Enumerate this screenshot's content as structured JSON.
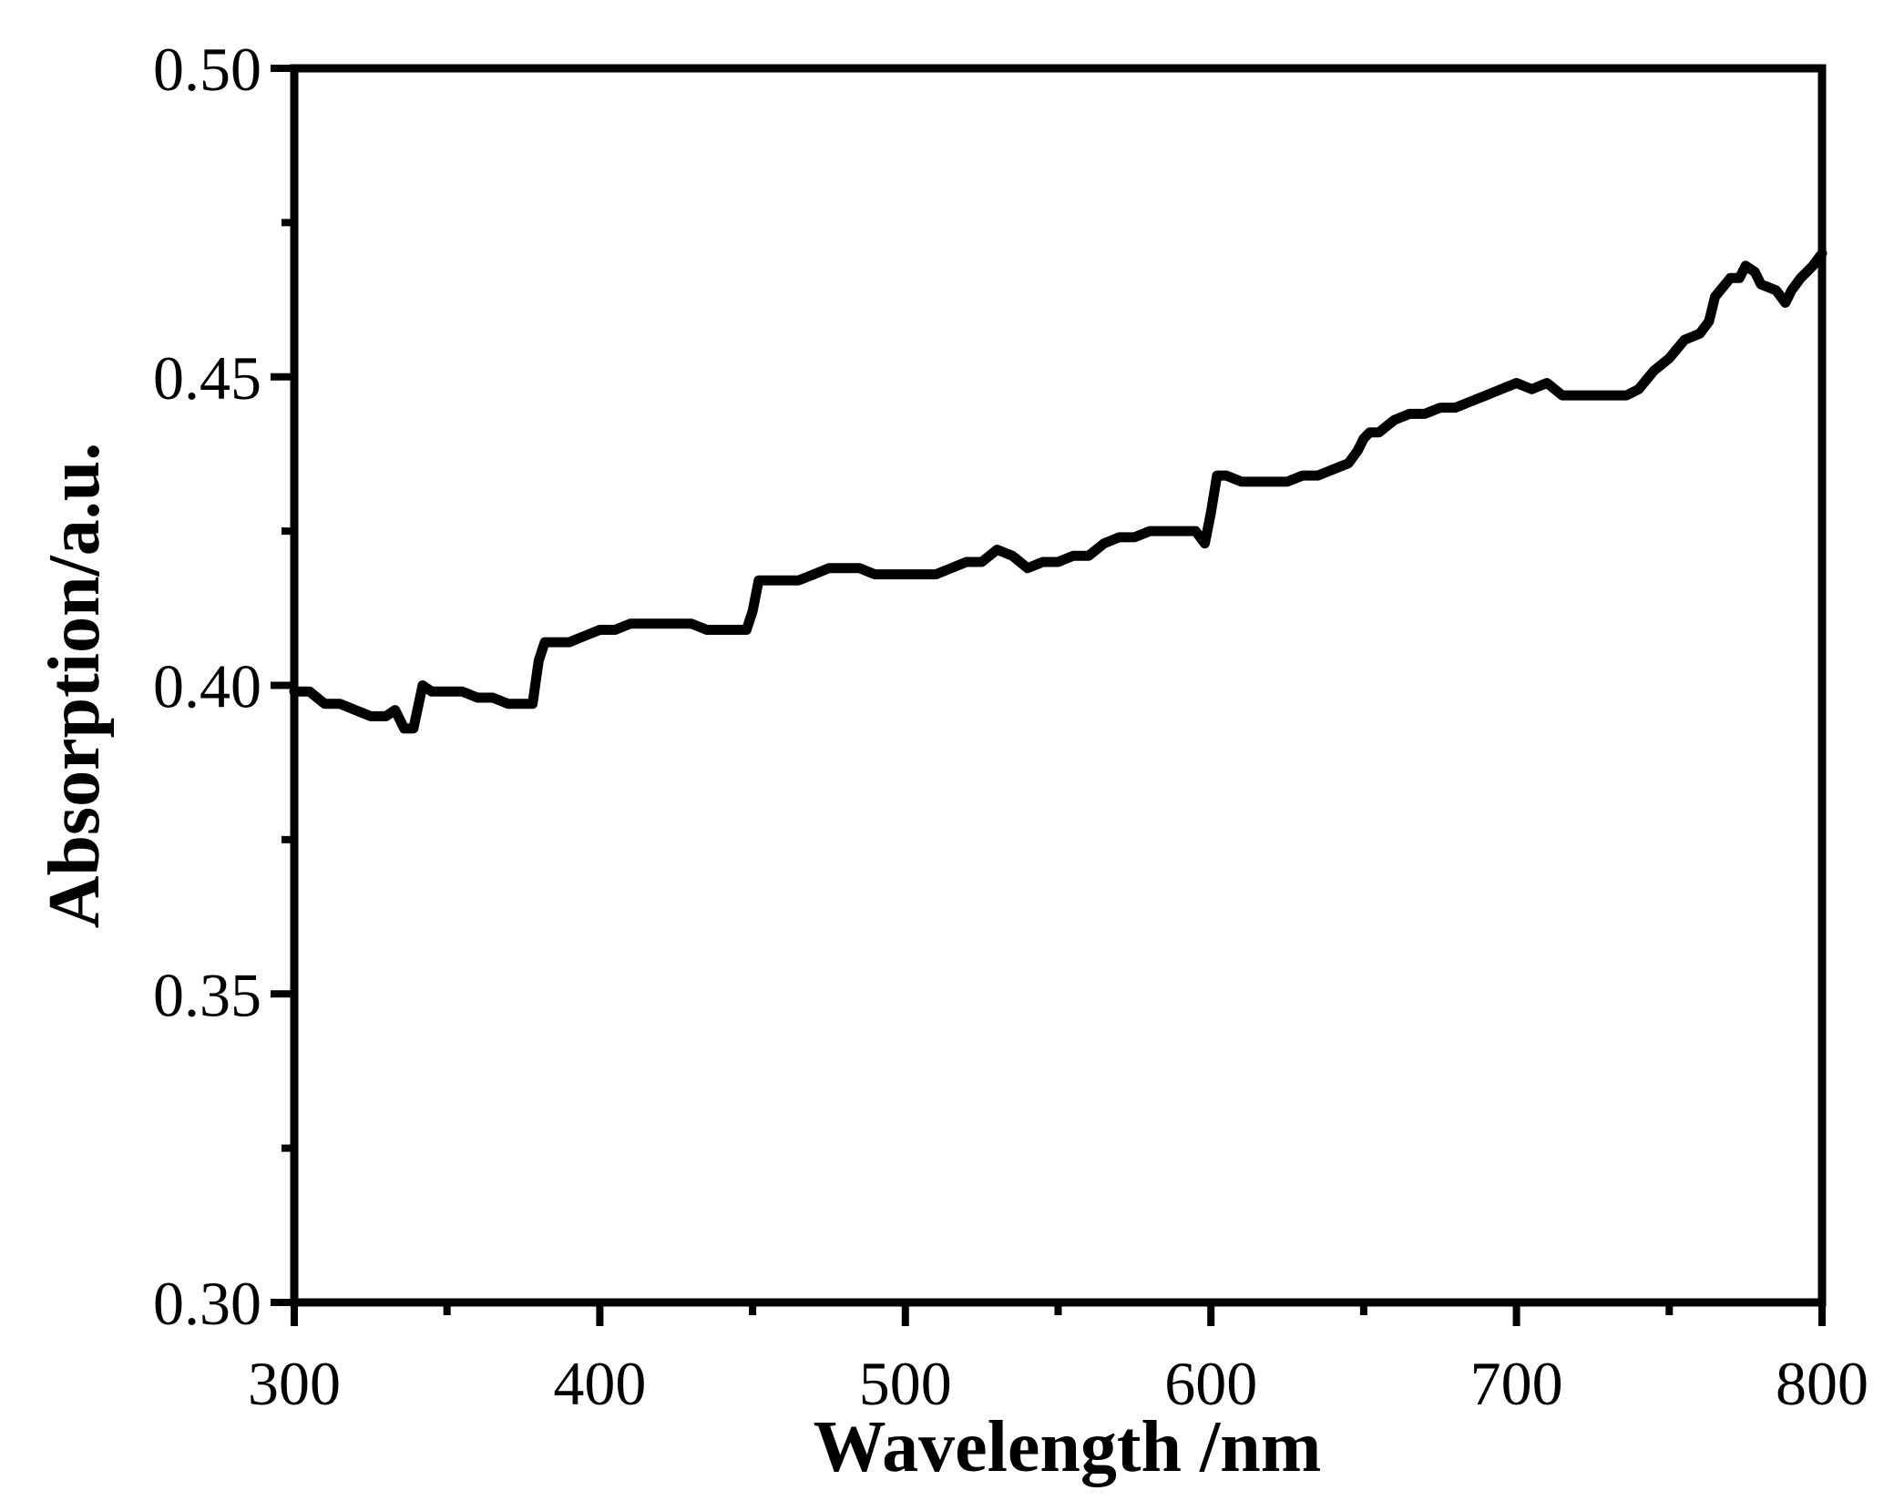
{
  "chart_data": {
    "type": "line",
    "title": "",
    "xlabel": "Wavelength /nm",
    "ylabel": "Absorption/a.u.",
    "xlim": [
      300,
      800
    ],
    "ylim": [
      0.3,
      0.5
    ],
    "x_ticks": [
      300,
      400,
      500,
      600,
      700,
      800
    ],
    "x_tick_labels": [
      "300",
      "400",
      "500",
      "600",
      "700",
      "800"
    ],
    "y_ticks": [
      0.3,
      0.35,
      0.4,
      0.45,
      0.5
    ],
    "y_tick_labels": [
      "0.30",
      "0.35",
      "0.40",
      "0.45",
      "0.50"
    ],
    "grid": false,
    "legend": "none",
    "series": [
      {
        "color": "#000000",
        "x": [
          300,
          305,
          310,
          315,
          320,
          325,
          330,
          333,
          336,
          339,
          342,
          345,
          350,
          355,
          360,
          365,
          370,
          375,
          378,
          380,
          382,
          385,
          390,
          395,
          400,
          405,
          410,
          415,
          420,
          425,
          430,
          435,
          440,
          445,
          448,
          450,
          452,
          455,
          460,
          465,
          470,
          475,
          480,
          485,
          490,
          495,
          500,
          505,
          510,
          515,
          520,
          525,
          530,
          535,
          540,
          545,
          550,
          555,
          560,
          565,
          570,
          575,
          580,
          585,
          590,
          595,
          598,
          600,
          602,
          605,
          610,
          615,
          620,
          625,
          630,
          635,
          640,
          645,
          648,
          650,
          652,
          655,
          660,
          665,
          670,
          675,
          680,
          685,
          690,
          695,
          700,
          705,
          710,
          715,
          720,
          725,
          730,
          733,
          736,
          740,
          745,
          750,
          755,
          760,
          763,
          765,
          770,
          773,
          775,
          778,
          780,
          785,
          788,
          790,
          793,
          795,
          797,
          800
        ],
        "y": [
          0.399,
          0.399,
          0.397,
          0.397,
          0.396,
          0.395,
          0.395,
          0.396,
          0.393,
          0.393,
          0.4,
          0.399,
          0.399,
          0.399,
          0.398,
          0.398,
          0.397,
          0.397,
          0.397,
          0.404,
          0.407,
          0.407,
          0.407,
          0.408,
          0.409,
          0.409,
          0.41,
          0.41,
          0.41,
          0.41,
          0.41,
          0.409,
          0.409,
          0.409,
          0.409,
          0.412,
          0.417,
          0.417,
          0.417,
          0.417,
          0.418,
          0.419,
          0.419,
          0.419,
          0.418,
          0.418,
          0.418,
          0.418,
          0.418,
          0.419,
          0.42,
          0.42,
          0.422,
          0.421,
          0.419,
          0.42,
          0.42,
          0.421,
          0.421,
          0.423,
          0.424,
          0.424,
          0.425,
          0.425,
          0.425,
          0.425,
          0.423,
          0.428,
          0.434,
          0.434,
          0.433,
          0.433,
          0.433,
          0.433,
          0.434,
          0.434,
          0.435,
          0.436,
          0.438,
          0.44,
          0.441,
          0.441,
          0.443,
          0.444,
          0.444,
          0.445,
          0.445,
          0.446,
          0.447,
          0.448,
          0.449,
          0.448,
          0.449,
          0.447,
          0.447,
          0.447,
          0.447,
          0.447,
          0.447,
          0.448,
          0.451,
          0.453,
          0.456,
          0.457,
          0.459,
          0.463,
          0.466,
          0.466,
          0.468,
          0.467,
          0.465,
          0.464,
          0.462,
          0.464,
          0.466,
          0.467,
          0.468,
          0.47
        ]
      }
    ]
  }
}
